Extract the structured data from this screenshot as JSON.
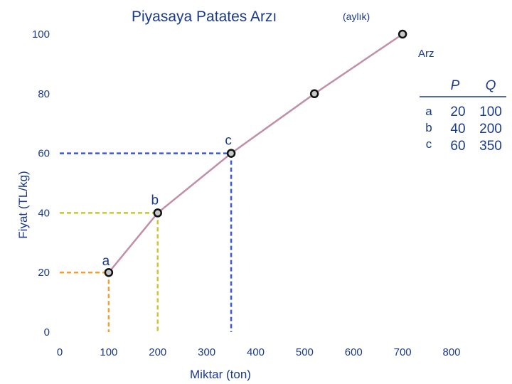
{
  "chart_data": {
    "type": "line",
    "title": "Piyasaya Patates Arzı",
    "subtitle": "(aylık)",
    "xlabel": "Miktar (ton)",
    "ylabel": "Fiyat (TL/kg)",
    "xlim": [
      0,
      800
    ],
    "ylim": [
      0,
      100
    ],
    "x_ticks": [
      "0",
      "100",
      "200",
      "300",
      "400",
      "500",
      "600",
      "700",
      "800"
    ],
    "y_ticks": [
      "0",
      "20",
      "40",
      "60",
      "80",
      "100"
    ],
    "series": [
      {
        "name": "Arz",
        "color": "#c08fa8",
        "x": [
          100,
          200,
          350,
          520,
          700
        ],
        "y": [
          20,
          40,
          60,
          80,
          100
        ]
      }
    ],
    "marked_points": [
      {
        "label": "a",
        "x": 100,
        "y": 20,
        "color": "#f0a030"
      },
      {
        "label": "b",
        "x": 200,
        "y": 40,
        "color": "#c8c830"
      },
      {
        "label": "c",
        "x": 350,
        "y": 60,
        "color": "#3a5ad0"
      }
    ],
    "grid": false
  },
  "table": {
    "headers": [
      "P",
      "Q"
    ],
    "rows": [
      {
        "label": "a",
        "P": "20",
        "Q": "100"
      },
      {
        "label": "b",
        "P": "40",
        "Q": "200"
      },
      {
        "label": "c",
        "P": "60",
        "Q": "350"
      }
    ]
  },
  "colors": {
    "text": "#1a3a8a",
    "axis": "#ffffff",
    "table_rule": "#1a3a8a",
    "marker_fill": "#c8c8c8",
    "marker_stroke": "#111111"
  }
}
